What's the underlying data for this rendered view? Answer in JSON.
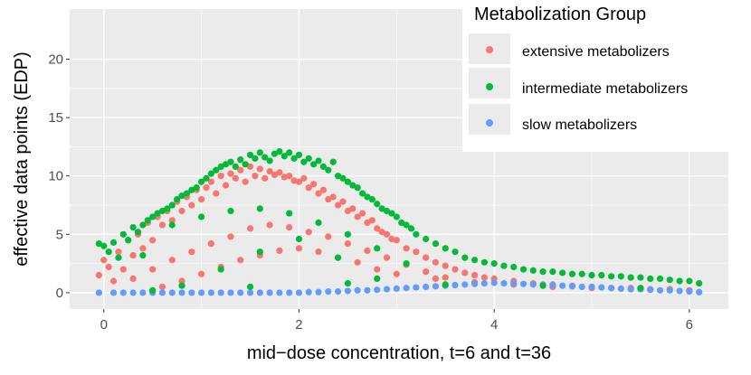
{
  "chart_data": {
    "type": "scatter",
    "title": "",
    "xlabel": "mid−dose concentration, t=6 and t=36",
    "ylabel": "effective data points (EDP)",
    "xlim": [
      -0.35,
      6.4
    ],
    "ylim": [
      -1.4,
      24.3
    ],
    "x_ticks": [
      0,
      2,
      4,
      6
    ],
    "x_tick_labels": [
      "0",
      "2",
      "4",
      "6"
    ],
    "y_ticks": [
      0,
      5,
      10,
      15,
      20
    ],
    "y_tick_labels": [
      "0",
      "5",
      "10",
      "15",
      "20"
    ],
    "grid": true,
    "legend": {
      "title": "Metabolization Group",
      "position": "top-right"
    },
    "series": [
      {
        "name": "extensive metabolizers",
        "color": "#F8766D",
        "x": [
          -0.05,
          0.0,
          0.05,
          0.1,
          0.15,
          0.2,
          0.25,
          0.3,
          0.35,
          0.4,
          0.45,
          0.5,
          0.55,
          0.6,
          0.65,
          0.7,
          0.75,
          0.8,
          0.85,
          0.9,
          0.95,
          1.0,
          1.05,
          1.1,
          1.15,
          1.2,
          1.25,
          1.3,
          1.35,
          1.4,
          1.45,
          1.5,
          1.55,
          1.6,
          1.65,
          1.7,
          1.75,
          1.8,
          1.85,
          1.9,
          1.95,
          2.0,
          2.05,
          2.1,
          2.15,
          2.2,
          2.25,
          2.3,
          2.35,
          2.4,
          2.45,
          2.5,
          2.55,
          2.6,
          2.65,
          2.7,
          2.75,
          2.8,
          2.85,
          2.9,
          2.95,
          3.0,
          3.1,
          3.2,
          3.3,
          3.4,
          3.5,
          3.6,
          3.7,
          3.8,
          3.9,
          4.0,
          4.2,
          4.4,
          4.6,
          4.8,
          5.0,
          5.2,
          5.4,
          5.6,
          5.8,
          6.0,
          0.3,
          0.5,
          0.7,
          0.9,
          1.1,
          1.3,
          1.5,
          1.7,
          1.9,
          2.1,
          2.3,
          2.5,
          2.7,
          2.9,
          3.1,
          3.3,
          3.5,
          0.6,
          0.8,
          1.0,
          1.2,
          1.4,
          1.6,
          1.8,
          2.0,
          2.2,
          2.4,
          2.6,
          2.8,
          3.0,
          3.4,
          3.8,
          4.2,
          4.6,
          5.0,
          5.5,
          6.0
        ],
        "y": [
          1.5,
          2.8,
          2.2,
          1.0,
          3.5,
          2.0,
          4.5,
          3.2,
          5.0,
          3.8,
          6.0,
          4.5,
          6.5,
          5.8,
          7.0,
          6.2,
          7.8,
          7.0,
          8.2,
          7.5,
          8.8,
          8.0,
          9.0,
          9.5,
          8.5,
          10.0,
          9.2,
          10.2,
          9.8,
          10.5,
          9.5,
          10.8,
          10.0,
          10.6,
          9.8,
          10.4,
          10.1,
          10.3,
          9.9,
          10.0,
          9.6,
          9.5,
          9.8,
          9.0,
          9.3,
          8.5,
          8.8,
          8.0,
          8.2,
          7.5,
          7.8,
          7.0,
          7.2,
          6.5,
          6.8,
          6.0,
          6.2,
          5.5,
          5.2,
          5.0,
          4.6,
          4.5,
          3.8,
          3.5,
          3.0,
          2.6,
          2.3,
          2.0,
          1.7,
          1.5,
          1.3,
          1.2,
          1.0,
          0.8,
          0.7,
          0.6,
          0.5,
          0.4,
          0.4,
          0.3,
          0.3,
          0.2,
          1.2,
          2.0,
          2.8,
          3.5,
          4.2,
          4.8,
          5.5,
          5.8,
          5.6,
          5.2,
          4.8,
          4.2,
          3.6,
          3.0,
          2.4,
          1.8,
          1.3,
          0.5,
          1.0,
          1.6,
          2.2,
          2.8,
          3.2,
          3.6,
          3.8,
          3.5,
          3.0,
          2.6,
          2.0,
          1.6,
          1.2,
          0.9,
          0.7,
          0.5,
          0.4,
          0.3,
          0.2
        ]
      },
      {
        "name": "intermediate metabolizers",
        "color": "#00BA38",
        "x": [
          -0.05,
          0.0,
          0.05,
          0.1,
          0.15,
          0.2,
          0.25,
          0.3,
          0.35,
          0.4,
          0.45,
          0.5,
          0.55,
          0.6,
          0.65,
          0.7,
          0.75,
          0.8,
          0.85,
          0.9,
          0.95,
          1.0,
          1.05,
          1.1,
          1.15,
          1.2,
          1.25,
          1.3,
          1.35,
          1.4,
          1.45,
          1.5,
          1.55,
          1.6,
          1.65,
          1.7,
          1.75,
          1.8,
          1.85,
          1.9,
          1.95,
          2.0,
          2.05,
          2.1,
          2.15,
          2.2,
          2.25,
          2.3,
          2.35,
          2.4,
          2.45,
          2.5,
          2.55,
          2.6,
          2.65,
          2.7,
          2.75,
          2.8,
          2.85,
          2.9,
          2.95,
          3.0,
          3.05,
          3.1,
          3.15,
          3.2,
          3.3,
          3.4,
          3.5,
          3.6,
          3.7,
          3.8,
          3.9,
          4.0,
          4.1,
          4.2,
          4.3,
          4.4,
          4.5,
          4.6,
          4.7,
          4.8,
          4.9,
          5.0,
          5.1,
          5.2,
          5.3,
          5.4,
          5.5,
          5.6,
          5.7,
          5.8,
          5.9,
          6.0,
          6.1,
          0.4,
          0.7,
          1.0,
          1.3,
          1.6,
          1.9,
          2.2,
          2.5,
          2.8,
          3.1,
          0.8,
          1.2,
          1.6,
          2.0,
          2.4,
          2.8,
          0.5,
          1.5,
          2.5,
          3.5,
          4.5,
          5.5
        ],
        "y": [
          4.2,
          4.0,
          3.5,
          4.3,
          3.0,
          5.0,
          4.5,
          5.6,
          5.2,
          5.8,
          6.2,
          6.5,
          6.8,
          7.0,
          7.2,
          7.5,
          8.0,
          8.3,
          8.5,
          8.8,
          9.0,
          9.5,
          9.8,
          10.2,
          10.5,
          10.8,
          11.0,
          11.2,
          10.8,
          11.4,
          11.0,
          11.8,
          11.5,
          12.0,
          11.6,
          11.3,
          11.9,
          12.1,
          11.7,
          12.0,
          11.5,
          11.8,
          11.2,
          11.5,
          11.0,
          11.3,
          10.8,
          10.5,
          11.2,
          10.0,
          9.8,
          9.5,
          9.2,
          9.0,
          8.5,
          8.2,
          8.0,
          7.6,
          7.2,
          7.0,
          6.8,
          6.5,
          6.0,
          5.8,
          5.5,
          5.0,
          4.6,
          4.2,
          3.8,
          3.5,
          3.0,
          2.8,
          2.6,
          2.5,
          2.3,
          2.2,
          2.0,
          1.9,
          1.8,
          1.8,
          1.7,
          1.6,
          1.6,
          1.5,
          1.5,
          1.4,
          1.4,
          1.3,
          1.3,
          1.2,
          1.2,
          1.1,
          1.0,
          1.0,
          0.8,
          3.2,
          5.8,
          6.5,
          7.0,
          7.2,
          6.8,
          6.0,
          5.0,
          3.8,
          2.5,
          0.6,
          2.0,
          3.5,
          4.6,
          3.0,
          1.2,
          0.2,
          0.5,
          0.8,
          0.7,
          0.6,
          0.4
        ]
      },
      {
        "name": "slow metabolizers",
        "color": "#619CFF",
        "x": [
          -0.05,
          0.1,
          0.2,
          0.3,
          0.4,
          0.5,
          0.6,
          0.7,
          0.8,
          0.9,
          1.0,
          1.1,
          1.2,
          1.3,
          1.4,
          1.5,
          1.6,
          1.7,
          1.8,
          1.9,
          2.0,
          2.1,
          2.2,
          2.3,
          2.4,
          2.5,
          2.6,
          2.7,
          2.8,
          2.9,
          3.0,
          3.1,
          3.2,
          3.3,
          3.4,
          3.5,
          3.6,
          3.7,
          3.8,
          3.9,
          4.0,
          4.1,
          4.2,
          4.3,
          4.4,
          4.5,
          4.6,
          4.7,
          4.8,
          4.9,
          5.0,
          5.1,
          5.2,
          5.3,
          5.4,
          5.5,
          5.6,
          5.7,
          5.8,
          5.9,
          6.0,
          6.1
        ],
        "y": [
          0.0,
          0.0,
          0.0,
          0.0,
          0.0,
          0.0,
          0.0,
          0.0,
          0.0,
          0.0,
          0.0,
          0.0,
          0.0,
          0.0,
          0.0,
          0.0,
          0.0,
          0.0,
          0.0,
          0.0,
          0.0,
          0.05,
          0.05,
          0.1,
          0.1,
          0.15,
          0.2,
          0.2,
          0.25,
          0.3,
          0.35,
          0.4,
          0.45,
          0.5,
          0.55,
          0.6,
          0.65,
          0.7,
          0.75,
          0.8,
          0.85,
          0.8,
          0.8,
          0.75,
          0.7,
          0.7,
          0.65,
          0.6,
          0.55,
          0.5,
          0.5,
          0.45,
          0.4,
          0.35,
          0.3,
          0.3,
          0.25,
          0.2,
          0.2,
          0.15,
          0.1,
          0.05
        ]
      }
    ]
  }
}
